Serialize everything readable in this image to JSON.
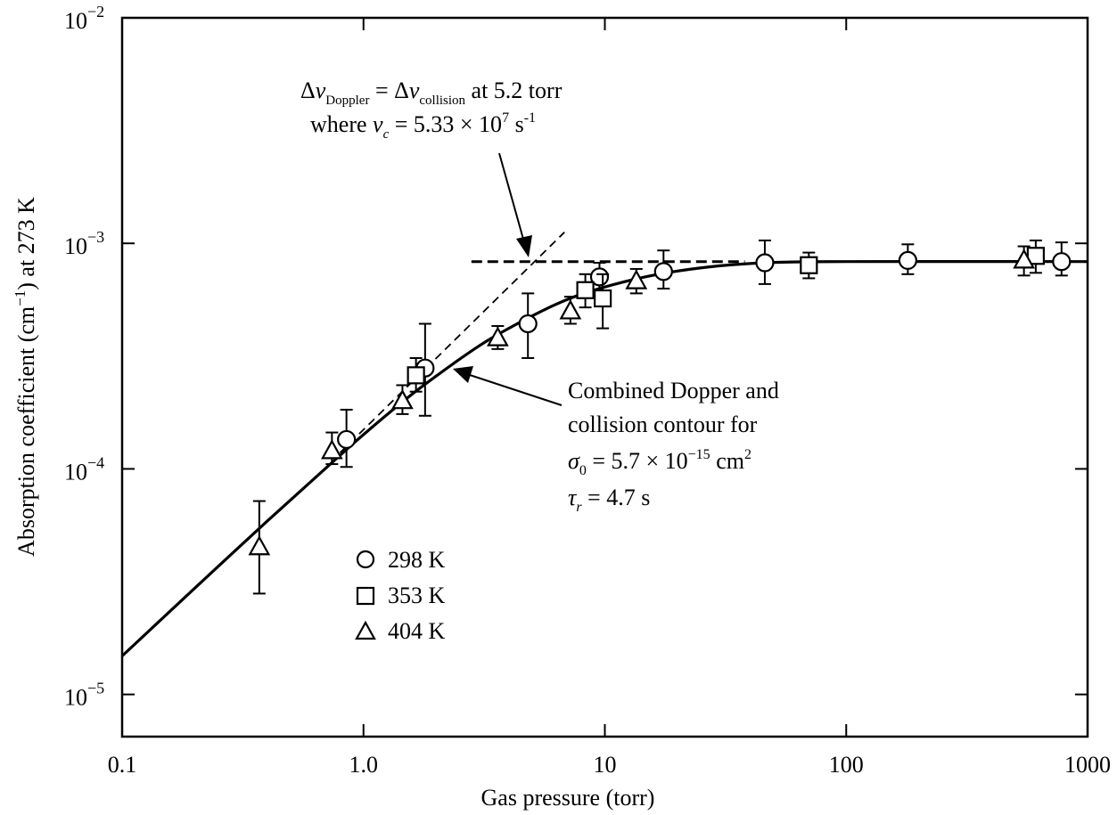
{
  "chart_data": {
    "type": "scatter",
    "title": "",
    "xlabel": "Gas pressure (torr)",
    "ylabel_parts": {
      "a": "Absorption coefficient (cm",
      "sup": "−1",
      "b": ") at 273 K"
    },
    "xscale": "log",
    "yscale": "log",
    "xlim": [
      0.1,
      1000
    ],
    "ylim": [
      6.5e-06,
      0.01
    ],
    "x_ticks": [
      {
        "value": 0.1,
        "label": "0.1"
      },
      {
        "value": 1,
        "label": "1.0"
      },
      {
        "value": 10,
        "label": "10"
      },
      {
        "value": 100,
        "label": "100"
      },
      {
        "value": 1000,
        "label": "1000"
      }
    ],
    "y_ticks": [
      {
        "value": 1e-05,
        "base": "10",
        "exp": "−5"
      },
      {
        "value": 0.0001,
        "base": "10",
        "exp": "−4"
      },
      {
        "value": 0.001,
        "base": "10",
        "exp": "−3"
      },
      {
        "value": 0.01,
        "base": "10",
        "exp": "−2"
      }
    ],
    "series": [
      {
        "name": "298 K",
        "marker": "circle",
        "points": [
          {
            "x": 0.85,
            "y": 0.000135,
            "yerr_low": 0.000102,
            "yerr_high": 0.000183
          },
          {
            "x": 1.8,
            "y": 0.00028,
            "yerr_low": 0.000172,
            "yerr_high": 0.00044
          },
          {
            "x": 4.8,
            "y": 0.00044,
            "yerr_low": 0.00031,
            "yerr_high": 0.0006
          },
          {
            "x": 9.5,
            "y": 0.00071,
            "yerr_low": 0.00058,
            "yerr_high": 0.00082
          },
          {
            "x": 17.5,
            "y": 0.00075,
            "yerr_low": 0.00063,
            "yerr_high": 0.00093
          },
          {
            "x": 46,
            "y": 0.00082,
            "yerr_low": 0.00066,
            "yerr_high": 0.00103
          },
          {
            "x": 180,
            "y": 0.00084,
            "yerr_low": 0.00073,
            "yerr_high": 0.00099
          },
          {
            "x": 780,
            "y": 0.00083,
            "yerr_low": 0.00072,
            "yerr_high": 0.00101
          }
        ]
      },
      {
        "name": "353 K",
        "marker": "square",
        "points": [
          {
            "x": 1.65,
            "y": 0.00026,
            "yerr_low": 0.00022,
            "yerr_high": 0.00031
          },
          {
            "x": 8.3,
            "y": 0.00062,
            "yerr_low": 0.00052,
            "yerr_high": 0.00073
          },
          {
            "x": 9.8,
            "y": 0.00057,
            "yerr_low": 0.00042,
            "yerr_high": 0.00073
          },
          {
            "x": 70,
            "y": 0.0008,
            "yerr_low": 0.0007,
            "yerr_high": 0.00091
          },
          {
            "x": 610,
            "y": 0.00088,
            "yerr_low": 0.00074,
            "yerr_high": 0.00103
          }
        ]
      },
      {
        "name": "404 K",
        "marker": "triangle",
        "points": [
          {
            "x": 0.37,
            "y": 4.5e-05,
            "yerr_low": 2.8e-05,
            "yerr_high": 7.2e-05
          },
          {
            "x": 0.74,
            "y": 0.00012,
            "yerr_low": 0.000105,
            "yerr_high": 0.000145
          },
          {
            "x": 1.45,
            "y": 0.0002,
            "yerr_low": 0.000175,
            "yerr_high": 0.000235
          },
          {
            "x": 3.6,
            "y": 0.00038,
            "yerr_low": 0.00034,
            "yerr_high": 0.00043
          },
          {
            "x": 7.2,
            "y": 0.0005,
            "yerr_low": 0.00044,
            "yerr_high": 0.00058
          },
          {
            "x": 13.5,
            "y": 0.00068,
            "yerr_low": 0.0006,
            "yerr_high": 0.00077
          },
          {
            "x": 545,
            "y": 0.00084,
            "yerr_low": 0.00072,
            "yerr_high": 0.00097
          }
        ]
      }
    ],
    "fit_curve": [
      {
        "x": 0.1,
        "y": 1.48e-05
      },
      {
        "x": 0.2,
        "y": 2.96e-05
      },
      {
        "x": 0.4,
        "y": 5.88e-05
      },
      {
        "x": 0.7,
        "y": 0.000101
      },
      {
        "x": 1.0,
        "y": 0.000142
      },
      {
        "x": 1.5,
        "y": 0.000204
      },
      {
        "x": 2.0,
        "y": 0.000258
      },
      {
        "x": 3.0,
        "y": 0.00035
      },
      {
        "x": 4.0,
        "y": 0.00042
      },
      {
        "x": 6.0,
        "y": 0.000525
      },
      {
        "x": 8.0,
        "y": 0.000595
      },
      {
        "x": 12.0,
        "y": 0.000675
      },
      {
        "x": 18.0,
        "y": 0.00074
      },
      {
        "x": 30.0,
        "y": 0.000795
      },
      {
        "x": 50.0,
        "y": 0.000823
      },
      {
        "x": 100.0,
        "y": 0.00083
      },
      {
        "x": 1000.0,
        "y": 0.00083
      }
    ],
    "doppler_asymptote": [
      {
        "x": 0.8,
        "y": 0.000118
      },
      {
        "x": 6.8,
        "y": 0.00112
      }
    ],
    "collision_asymptote": [
      {
        "x": 2.8,
        "y": 0.00083
      },
      {
        "x": 38,
        "y": 0.00083
      }
    ],
    "annotations": {
      "crossover_line1": {
        "a": "Δ",
        "nu1": "ν",
        "sub1": "Doppler",
        "eq": " = Δ",
        "nu2": "ν",
        "sub2": "collision",
        "rest": " at 5.2 torr"
      },
      "crossover_line2": {
        "a": "where ",
        "nu": "ν",
        "sub": "c",
        "rest": " = 5.33 × 10",
        "sup": "7",
        "unit": " s",
        "unitsup": "-1"
      },
      "curve_label_line1": "Combined Dopper and",
      "curve_label_line2": "collision contour for",
      "curve_label_line3": {
        "sym": "σ",
        "sub": "0",
        "rest": " = 5.7 × 10",
        "sup": "−15",
        "unit": " cm",
        "unitsup": "2"
      },
      "curve_label_line4": {
        "sym": "τ",
        "sub": "r",
        "rest": " = 4.7 s"
      }
    },
    "legend": {
      "placement": "lower-left",
      "items": [
        {
          "label": "298 K",
          "marker": "circle"
        },
        {
          "label": "353 K",
          "marker": "square"
        },
        {
          "label": "404 K",
          "marker": "triangle"
        }
      ]
    },
    "grid": false
  }
}
